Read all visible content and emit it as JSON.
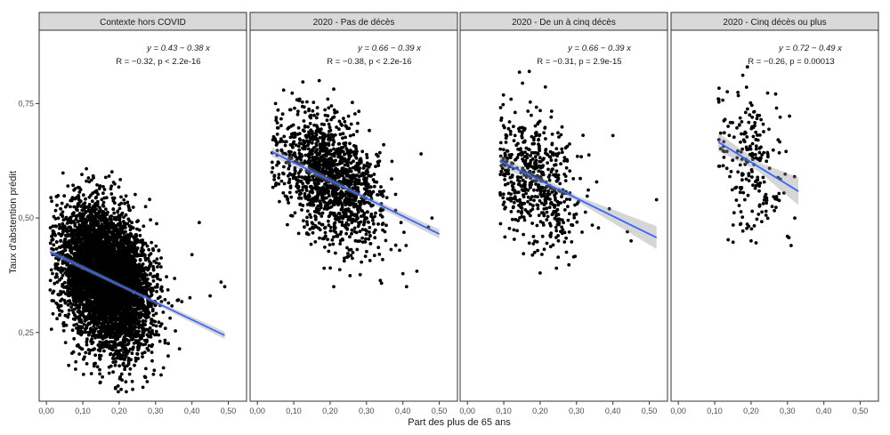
{
  "chart_data": {
    "type": "scatter",
    "xlabel": "Part des plus de 65 ans",
    "ylabel": "Taux d'abstention prédit",
    "xlim": [
      -0.02,
      0.55
    ],
    "ylim": [
      0.1,
      0.91
    ],
    "x_ticks": [
      0.0,
      0.1,
      0.2,
      0.3,
      0.4,
      0.5
    ],
    "x_tick_labels": [
      "0,00",
      "0,10",
      "0,20",
      "0,30",
      "0,40",
      "0,50"
    ],
    "y_ticks": [
      0.25,
      0.5,
      0.75
    ],
    "y_tick_labels": [
      "0,25",
      "0,50",
      "0,75"
    ],
    "grid": false,
    "panels": [
      {
        "title": "Contexte hors COVID",
        "equation": "y = 0.43 − 0.38 x",
        "stats": "R = −0.32, p < 2.2e-16",
        "fit": {
          "intercept": 0.43,
          "slope": -0.38,
          "x_range": [
            0.01,
            0.49
          ],
          "ci_halfwidth": [
            0.006,
            0.004,
            0.008
          ]
        },
        "points": {
          "n": 5200,
          "x_mean": 0.165,
          "x_sd": 0.06,
          "x_min": 0.01,
          "x_max": 0.49,
          "y_mean": 0.37,
          "y_sd": 0.075,
          "y_min": 0.12,
          "y_max": 0.61,
          "seed": 11,
          "extra": [
            [
              0.48,
              0.36
            ],
            [
              0.49,
              0.35
            ],
            [
              0.45,
              0.33
            ],
            [
              0.42,
              0.49
            ],
            [
              0.4,
              0.42
            ],
            [
              0.36,
              0.32
            ],
            [
              0.03,
              0.36
            ],
            [
              0.02,
              0.34
            ],
            [
              0.19,
              0.13
            ],
            [
              0.08,
              0.17
            ]
          ]
        }
      },
      {
        "title": "2020 - Pas de décès",
        "equation": "y = 0.66 − 0.39 x",
        "stats": "R = −0.38, p < 2.2e-16",
        "fit": {
          "intercept": 0.66,
          "slope": -0.39,
          "x_range": [
            0.04,
            0.5
          ],
          "ci_halfwidth": [
            0.01,
            0.005,
            0.01
          ]
        },
        "points": {
          "n": 1400,
          "x_mean": 0.2,
          "x_sd": 0.07,
          "x_min": 0.04,
          "x_max": 0.5,
          "y_mean": 0.58,
          "y_sd": 0.065,
          "y_min": 0.35,
          "y_max": 0.8,
          "seed": 23,
          "extra": [
            [
              0.05,
              0.75
            ],
            [
              0.04,
              0.6
            ],
            [
              0.48,
              0.5
            ],
            [
              0.47,
              0.48
            ],
            [
              0.45,
              0.64
            ],
            [
              0.41,
              0.35
            ],
            [
              0.21,
              0.35
            ],
            [
              0.17,
              0.8
            ]
          ]
        }
      },
      {
        "title": "2020 - De un à cinq décès",
        "equation": "y = 0.66 − 0.39 x",
        "stats": "R = −0.31, p = 2.9e-15",
        "fit": {
          "intercept": 0.66,
          "slope": -0.39,
          "x_range": [
            0.09,
            0.52
          ],
          "ci_halfwidth": [
            0.012,
            0.006,
            0.025
          ]
        },
        "points": {
          "n": 560,
          "x_mean": 0.19,
          "x_sd": 0.06,
          "x_min": 0.09,
          "x_max": 0.52,
          "y_mean": 0.59,
          "y_sd": 0.07,
          "y_min": 0.38,
          "y_max": 0.82,
          "seed": 37,
          "extra": [
            [
              0.52,
              0.54
            ],
            [
              0.45,
              0.45
            ],
            [
              0.44,
              0.47
            ],
            [
              0.4,
              0.68
            ],
            [
              0.39,
              0.52
            ],
            [
              0.2,
              0.38
            ],
            [
              0.17,
              0.82
            ],
            [
              0.25,
              0.45
            ]
          ]
        }
      },
      {
        "title": "2020 - Cinq décès ou plus",
        "equation": "y = 0.72 − 0.49 x",
        "stats": "R = −0.26, p = 0.00013",
        "fit": {
          "intercept": 0.72,
          "slope": -0.49,
          "x_range": [
            0.11,
            0.33
          ],
          "ci_halfwidth": [
            0.02,
            0.01,
            0.03
          ]
        },
        "points": {
          "n": 210,
          "x_mean": 0.2,
          "x_sd": 0.045,
          "x_min": 0.11,
          "x_max": 0.33,
          "y_mean": 0.62,
          "y_sd": 0.075,
          "y_min": 0.43,
          "y_max": 0.83,
          "seed": 53,
          "extra": [
            [
              0.19,
              0.83
            ],
            [
              0.32,
              0.5
            ],
            [
              0.31,
              0.44
            ],
            [
              0.3,
              0.46
            ],
            [
              0.2,
              0.45
            ],
            [
              0.11,
              0.76
            ],
            [
              0.28,
              0.72
            ],
            [
              0.27,
              0.74
            ]
          ]
        }
      }
    ]
  }
}
